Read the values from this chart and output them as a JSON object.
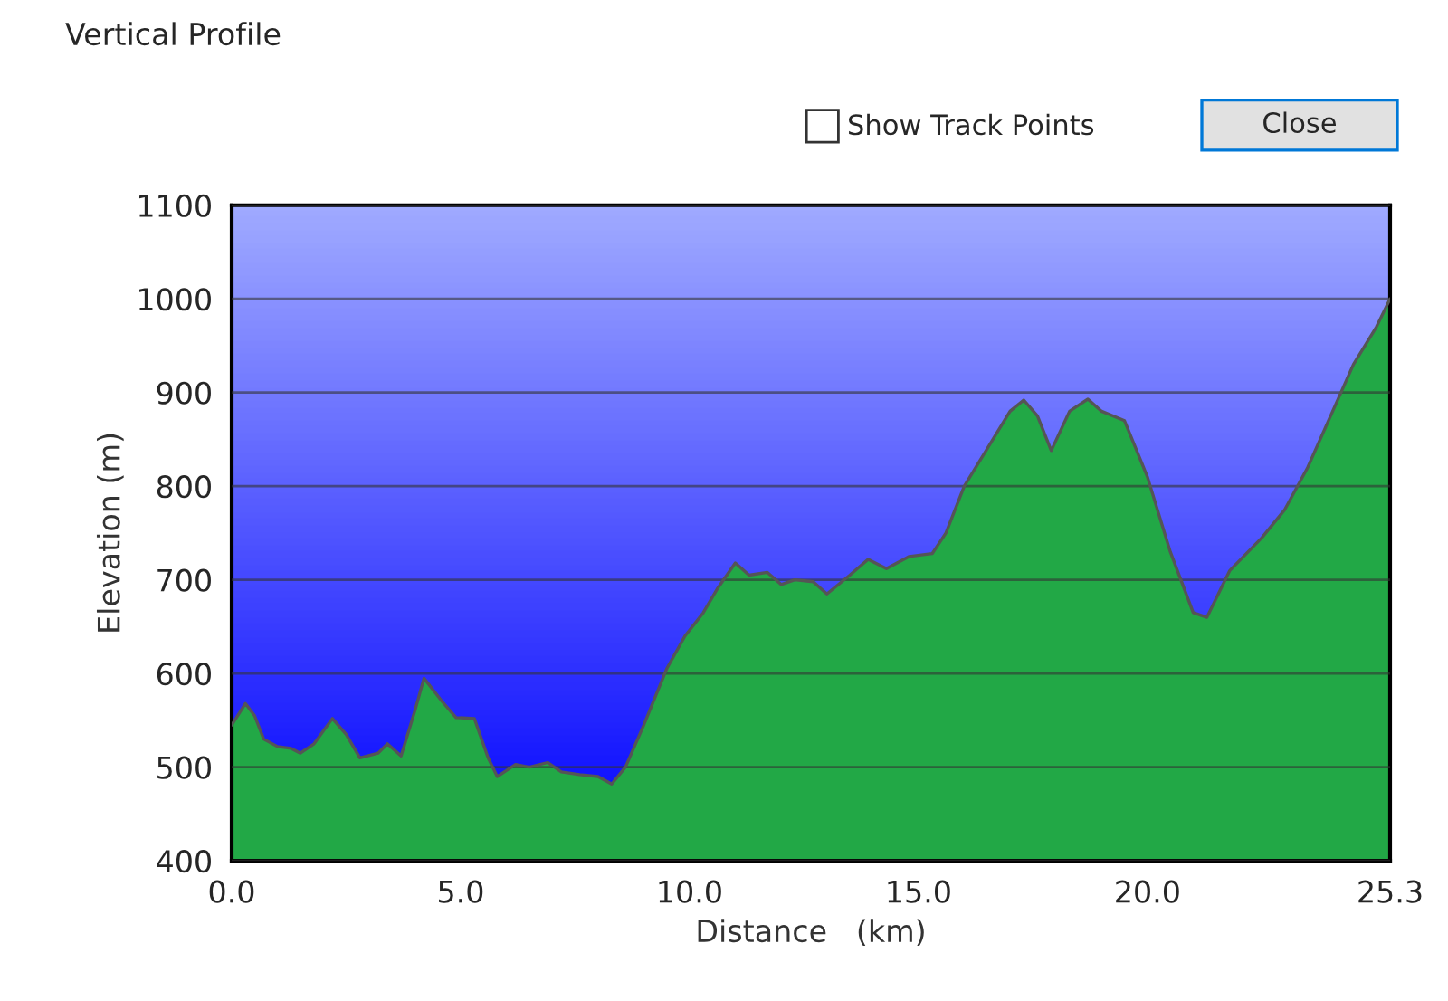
{
  "chart_data": {
    "type": "area",
    "title": "Vertical Profile",
    "xlabel": "Distance   (km)",
    "ylabel": "Elevation (m)",
    "annotations": [
      "Show Track Points",
      "Close"
    ],
    "series": [
      {
        "color": "#22a846",
        "x": [
          0.0,
          0.3,
          0.5,
          0.7,
          1.0,
          1.3,
          1.5,
          1.8,
          2.2,
          2.5,
          2.8,
          3.2,
          3.4,
          3.7,
          4.0,
          4.2,
          4.6,
          4.9,
          5.3,
          5.6,
          5.8,
          6.2,
          6.5,
          6.9,
          7.2,
          7.6,
          8.0,
          8.3,
          8.6,
          9.0,
          9.5,
          9.9,
          10.3,
          10.6,
          11.0,
          11.3,
          11.7,
          12.0,
          12.3,
          12.7,
          13.0,
          13.5,
          13.9,
          14.3,
          14.8,
          15.3,
          15.6,
          16.0,
          16.5,
          17.0,
          17.3,
          17.6,
          17.9,
          18.3,
          18.7,
          19.0,
          19.5,
          20.0,
          20.5,
          21.0,
          21.3,
          21.8,
          22.5,
          23.0,
          23.5,
          24.0,
          24.5,
          25.0,
          25.3
        ],
        "values": [
          545,
          568,
          555,
          530,
          522,
          520,
          515,
          525,
          552,
          535,
          510,
          515,
          525,
          512,
          560,
          595,
          570,
          553,
          552,
          510,
          490,
          503,
          500,
          505,
          495,
          492,
          490,
          482,
          500,
          545,
          605,
          640,
          665,
          690,
          718,
          705,
          708,
          695,
          700,
          698,
          685,
          705,
          722,
          712,
          725,
          728,
          750,
          800,
          840,
          880,
          892,
          875,
          838,
          880,
          893,
          880,
          870,
          810,
          730,
          665,
          660,
          710,
          745,
          775,
          820,
          875,
          930,
          970,
          1000
        ]
      }
    ],
    "xlim": [
      0,
      25.3
    ],
    "ylim": [
      400,
      1100
    ],
    "xticks": [
      {
        "value": 0,
        "label": "0.0"
      },
      {
        "value": 5,
        "label": "5.0"
      },
      {
        "value": 10,
        "label": "10.0"
      },
      {
        "value": 15,
        "label": "15.0"
      },
      {
        "value": 20,
        "label": "20.0"
      },
      {
        "value": 25.3,
        "label": "25.3"
      }
    ],
    "yticks": [
      400,
      500,
      600,
      700,
      800,
      900,
      1000,
      1100
    ],
    "grid": "y"
  }
}
